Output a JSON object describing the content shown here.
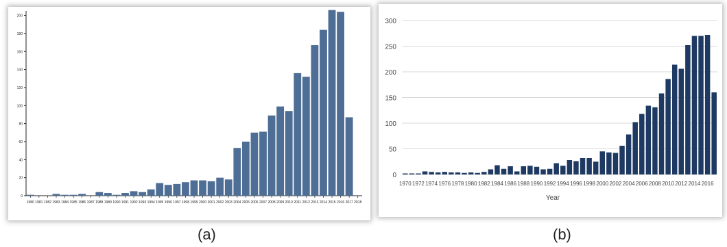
{
  "captions": {
    "a": "(a)",
    "b": "(b)"
  },
  "chart_data": [
    {
      "type": "bar",
      "title": "",
      "xlabel": "",
      "ylabel": "",
      "ylim": [
        0,
        205
      ],
      "yticks": [
        0,
        20,
        40,
        60,
        80,
        100,
        120,
        140,
        160,
        180,
        200
      ],
      "grid": false,
      "bar_color": "#4e6e95",
      "categories": [
        "1980",
        "1981",
        "1982",
        "1983",
        "1984",
        "1985",
        "1986",
        "1987",
        "1988",
        "1989",
        "1990",
        "1991",
        "1992",
        "1993",
        "1994",
        "1995",
        "1996",
        "1997",
        "1998",
        "1999",
        "2000",
        "2001",
        "2002",
        "2003",
        "2004",
        "2005",
        "2006",
        "2007",
        "2008",
        "2009",
        "2010",
        "2011",
        "2012",
        "2013",
        "2014",
        "2015",
        "2016",
        "2017",
        "2018"
      ],
      "values": [
        1,
        0,
        0,
        2,
        1,
        1,
        2,
        0,
        4,
        3,
        1,
        3,
        5,
        4,
        7,
        14,
        12,
        13,
        15,
        17,
        17,
        16,
        20,
        18,
        53,
        60,
        70,
        71,
        89,
        99,
        94,
        136,
        132,
        167,
        184,
        206,
        204,
        87,
        null
      ]
    },
    {
      "type": "bar",
      "title": "",
      "xlabel": "Year",
      "ylabel": "",
      "ylim": [
        0,
        300
      ],
      "yticks": [
        0,
        50,
        100,
        150,
        200,
        250,
        300
      ],
      "grid": true,
      "bar_color": "#1f3a62",
      "categories": [
        "1970",
        "1971",
        "1972",
        "1973",
        "1974",
        "1975",
        "1976",
        "1977",
        "1978",
        "1979",
        "1980",
        "1981",
        "1982",
        "1983",
        "1984",
        "1985",
        "1986",
        "1987",
        "1988",
        "1989",
        "1990",
        "1991",
        "1992",
        "1993",
        "1994",
        "1995",
        "1996",
        "1997",
        "1998",
        "1999",
        "2000",
        "2001",
        "2002",
        "2003",
        "2004",
        "2005",
        "2006",
        "2007",
        "2008",
        "2009",
        "2010",
        "2011",
        "2012",
        "2013",
        "2014",
        "2015",
        "2016",
        "2017"
      ],
      "x_tick_labels": [
        "1970",
        "1972",
        "1974",
        "1976",
        "1978",
        "1980",
        "1982",
        "1984",
        "1986",
        "1988",
        "1990",
        "1992",
        "1994",
        "1996",
        "1998",
        "2000",
        "2002",
        "2004",
        "2006",
        "2008",
        "2010",
        "2012",
        "2014",
        "2016"
      ],
      "values": [
        2,
        2,
        2,
        6,
        5,
        4,
        5,
        4,
        4,
        3,
        4,
        3,
        5,
        10,
        18,
        11,
        16,
        6,
        16,
        17,
        15,
        10,
        11,
        22,
        17,
        28,
        26,
        32,
        32,
        25,
        45,
        43,
        42,
        56,
        78,
        102,
        118,
        134,
        131,
        158,
        186,
        214,
        206,
        252,
        270,
        270,
        272,
        160
      ]
    }
  ]
}
